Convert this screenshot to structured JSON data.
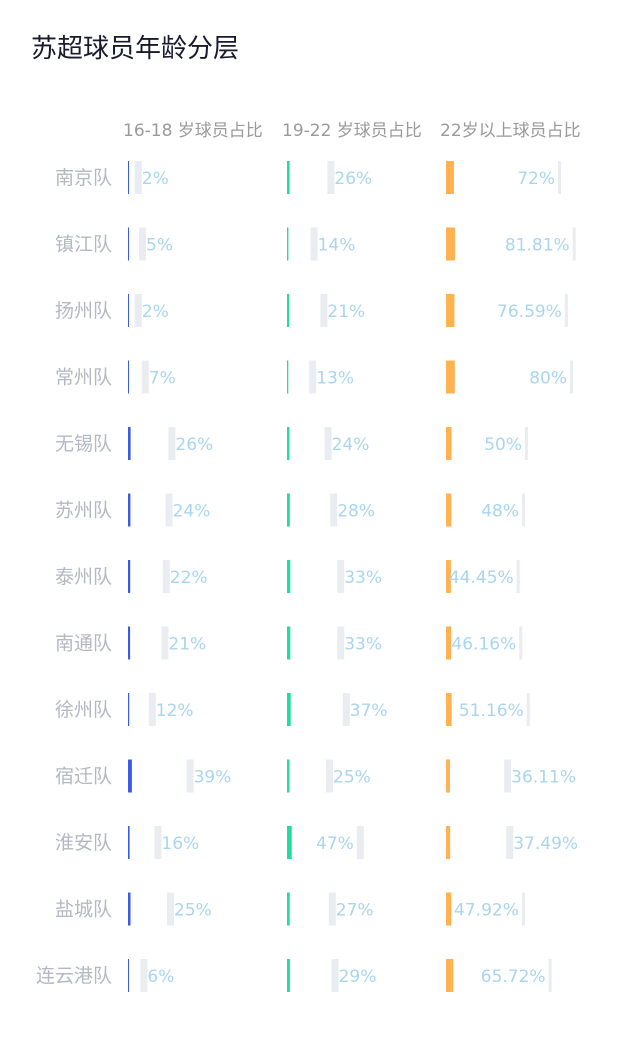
{
  "title": "苏超球员年龄分层",
  "chart_data": {
    "type": "bar",
    "title": "苏超球员年龄分层",
    "categories": [
      "南京队",
      "镇江队",
      "扬州队",
      "常州队",
      "无锡队",
      "苏州队",
      "泰州队",
      "南通队",
      "徐州队",
      "宿迁队",
      "淮安队",
      "盐城队",
      "连云港队"
    ],
    "series": [
      {
        "name": "16-18 岁球员占比",
        "color": "#3a5ae8",
        "values": [
          2,
          5,
          2,
          7,
          26,
          24,
          22,
          21,
          12,
          39,
          16,
          25,
          6
        ]
      },
      {
        "name": "19-22 岁球员占比",
        "color": "#1fdc9f",
        "values": [
          26,
          14,
          21,
          13,
          24,
          28,
          33,
          33,
          37,
          25,
          47,
          27,
          29
        ]
      },
      {
        "name": "22岁以上球员占比",
        "color": "#ffb24f",
        "values": [
          72,
          81.81,
          76.59,
          80,
          50,
          48,
          44.45,
          46.16,
          51.16,
          36.11,
          37.49,
          47.92,
          65.72
        ]
      }
    ],
    "value_suffix": "%",
    "legend": "top"
  }
}
